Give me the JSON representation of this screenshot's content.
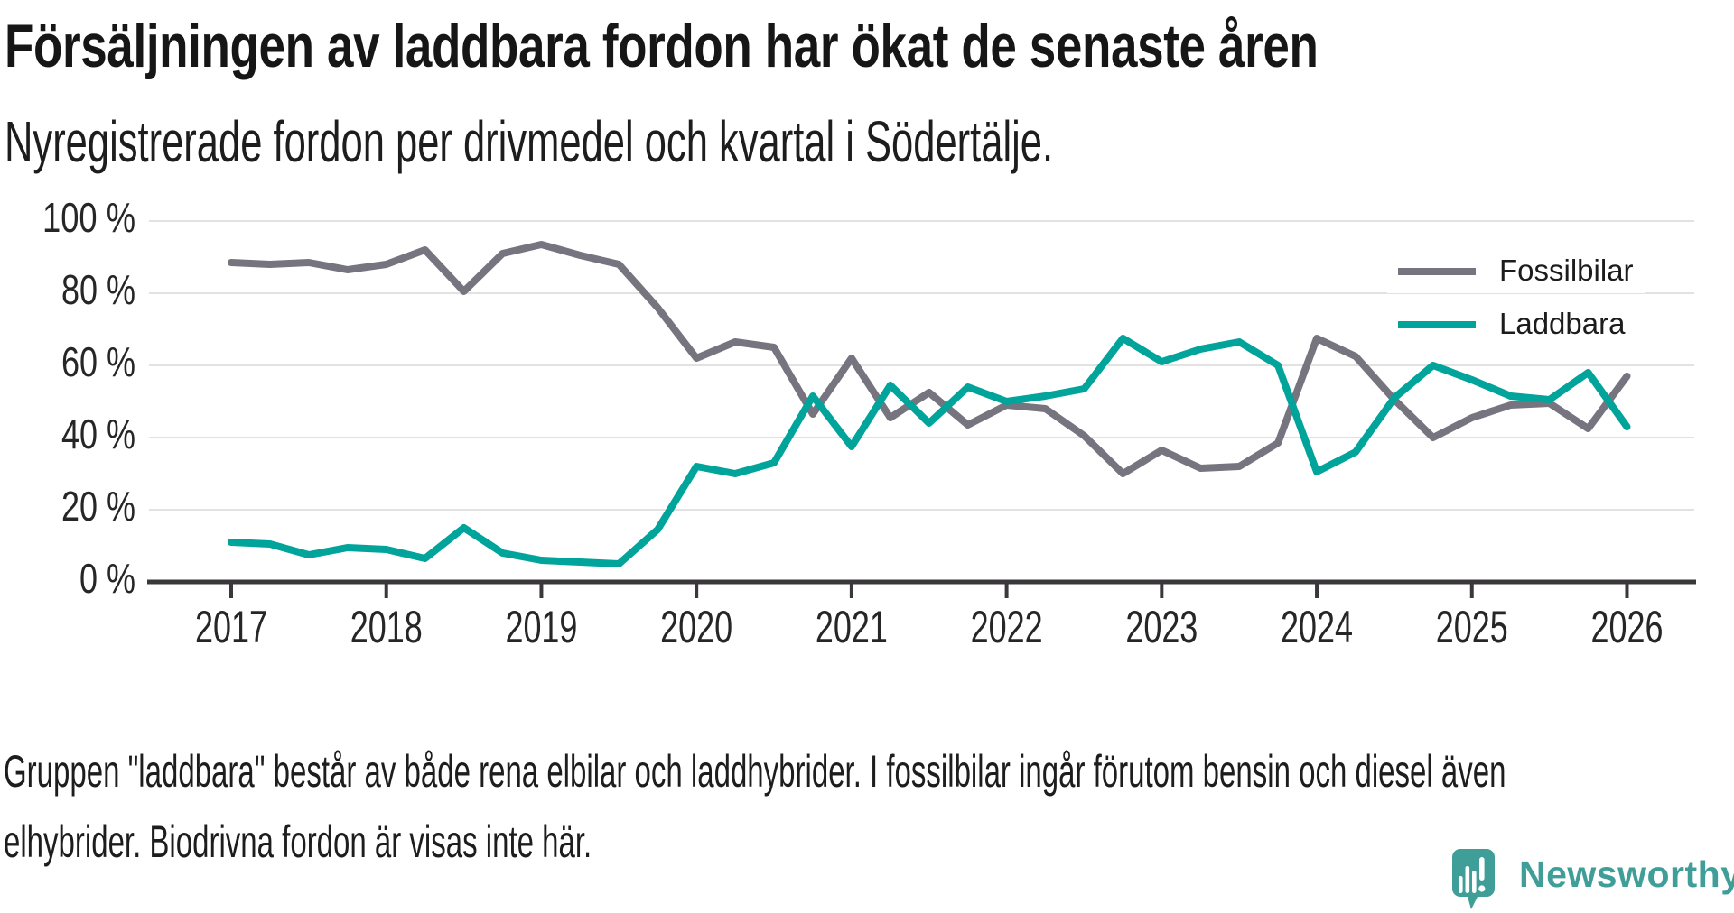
{
  "header": {
    "title": "Försäljningen av laddbara fordon har ökat de senaste åren",
    "subtitle": "Nyregistrerade fordon per drivmedel och kvartal i Södertälje."
  },
  "chart_data": {
    "type": "line",
    "title": "Försäljningen av laddbara fordon har ökat de senaste åren",
    "subtitle": "Nyregistrerade fordon per drivmedel och kvartal i Södertälje.",
    "unit": "%",
    "ylim": [
      0,
      100
    ],
    "grid": "horizontal",
    "legend_position": "top-right",
    "y_tick_labels": [
      "100 %",
      "80 %",
      "60 %",
      "40 %",
      "20 %",
      "0 %"
    ],
    "x_tick_labels": [
      "2017",
      "2018",
      "2019",
      "2020",
      "2021",
      "2022",
      "2023",
      "2024",
      "2025",
      "2026"
    ],
    "quarters": [
      "2017 Q1",
      "2017 Q2",
      "2017 Q3",
      "2017 Q4",
      "2018 Q1",
      "2018 Q2",
      "2018 Q3",
      "2018 Q4",
      "2019 Q1",
      "2019 Q2",
      "2019 Q3",
      "2019 Q4",
      "2020 Q1",
      "2020 Q2",
      "2020 Q3",
      "2020 Q4",
      "2021 Q1",
      "2021 Q2",
      "2021 Q3",
      "2021 Q4",
      "2022 Q1",
      "2022 Q2",
      "2022 Q3",
      "2022 Q4",
      "2023 Q1",
      "2023 Q2",
      "2023 Q3",
      "2023 Q4",
      "2024 Q1",
      "2024 Q2",
      "2024 Q3",
      "2024 Q4",
      "2025 Q1",
      "2025 Q2",
      "2025 Q3",
      "2025 Q4",
      "2026 Q1"
    ],
    "series": [
      {
        "name": "Fossilbilar",
        "color": "#76747e",
        "values": [
          88.5,
          88,
          88.5,
          86.5,
          88,
          92,
          80.5,
          91,
          93.5,
          90.5,
          88,
          76,
          62,
          66.5,
          65,
          46.5,
          62,
          45.5,
          52.5,
          43.5,
          49,
          48,
          40.5,
          30,
          36.5,
          31.5,
          32,
          38.5,
          67.5,
          62.5,
          50.5,
          40,
          45.5,
          49,
          49.5,
          42.5,
          57
        ]
      },
      {
        "name": "Laddbara",
        "color": "#00a49a",
        "values": [
          11,
          10.5,
          7.5,
          9.5,
          9,
          6.5,
          15,
          8,
          6,
          5.5,
          5,
          14.5,
          32,
          30,
          33,
          51.5,
          37.5,
          54.5,
          44,
          54,
          50,
          51.5,
          53.5,
          67.5,
          61,
          64.5,
          66.5,
          60,
          30.5,
          36,
          51,
          60,
          56,
          51.5,
          50.5,
          58,
          43
        ]
      }
    ]
  },
  "footnote": {
    "line1": "Gruppen \"laddbara\" består av både rena elbilar och laddhybrider. I fossilbilar ingår förutom bensin och diesel även",
    "line2": "elhybrider. Biodrivna fordon är visas inte här."
  },
  "logo": {
    "text": "Newsworthy",
    "color": "#3f9e97",
    "icon": "newsworthy-speech-bubble-chart-icon"
  }
}
